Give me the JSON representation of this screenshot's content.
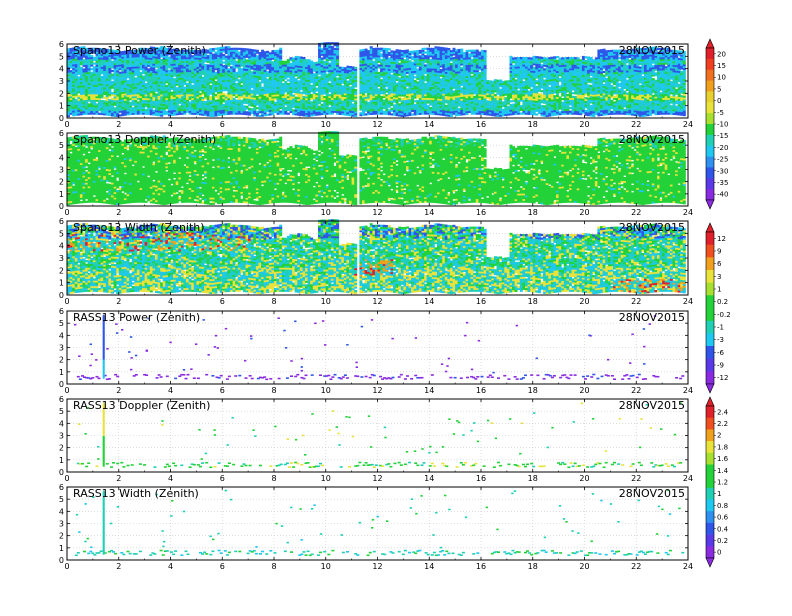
{
  "date_label": "28NOV2015",
  "x_ticks": [
    "0",
    "2",
    "4",
    "6",
    "8",
    "10",
    "12",
    "14",
    "16",
    "18",
    "20",
    "22",
    "24"
  ],
  "y_ticks": [
    "0",
    "1",
    "2",
    "3",
    "4",
    "5",
    "6"
  ],
  "colorbars": [
    {
      "id": "power",
      "labels": [
        "20",
        "15",
        "10",
        "5",
        "0",
        "-5",
        "-10",
        "-15",
        "-20",
        "-25",
        "-30",
        "-35",
        "-40"
      ]
    },
    {
      "id": "width",
      "labels": [
        "12",
        "9",
        "6",
        "3",
        "1",
        "0.2",
        "-0.2",
        "-1",
        "-3",
        "-6",
        "-9",
        "-12"
      ]
    },
    {
      "id": "rass",
      "labels": [
        "2.4",
        "2.2",
        "2",
        "1.8",
        "1.6",
        "1.4",
        "1.2",
        "1",
        "0.8",
        "0.6",
        "0.4",
        "0.2",
        "0"
      ]
    }
  ],
  "chart_data": [
    {
      "type": "heatmap",
      "title": "Spano13 Power (Zenith)",
      "xlim": [
        0,
        24
      ],
      "ylim": [
        0,
        6
      ],
      "colorbar": "power"
    },
    {
      "type": "heatmap",
      "title": "Spano13 Doppler (Zenith)",
      "xlim": [
        0,
        24
      ],
      "ylim": [
        0,
        6
      ],
      "colorbar": "power"
    },
    {
      "type": "heatmap",
      "title": "Spano13 Width (Zenith)",
      "xlim": [
        0,
        24
      ],
      "ylim": [
        0,
        6
      ],
      "colorbar": "width"
    },
    {
      "type": "scatter",
      "title": "RASS13 Power (Zenith)",
      "xlim": [
        0,
        24
      ],
      "ylim": [
        0,
        6
      ],
      "colorbar": "width"
    },
    {
      "type": "scatter",
      "title": "RASS13 Doppler (Zenith)",
      "xlim": [
        0,
        24
      ],
      "ylim": [
        0,
        6
      ],
      "colorbar": "rass"
    },
    {
      "type": "scatter",
      "title": "RASS13 Width (Zenith)",
      "xlim": [
        0,
        24
      ],
      "ylim": [
        0,
        6
      ],
      "colorbar": "rass"
    }
  ],
  "colors": {
    "purple": "#8a2be2",
    "blue": "#2f56e8",
    "cyan": "#1ec8f0",
    "teal": "#20d0b4",
    "green": "#22d238",
    "yellow": "#e8e23a",
    "orange": "#f0a01c",
    "red": "#e0202a",
    "grid": "#c8c8c8"
  }
}
